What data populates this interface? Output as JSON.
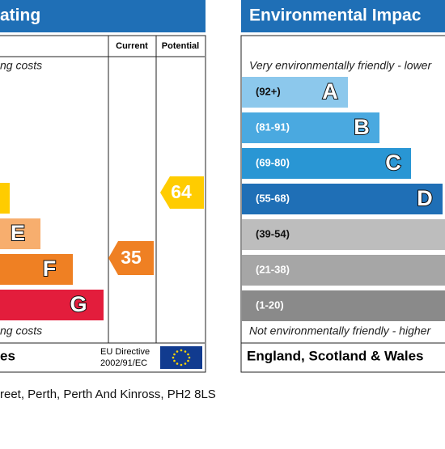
{
  "left_panel": {
    "title": "ating",
    "top_note": "ng costs",
    "bottom_note": "ng costs",
    "columns": [
      "Current",
      "Potential"
    ],
    "bands": [
      "E",
      "F",
      "G"
    ],
    "current": "35",
    "potential": "64",
    "footer": "es",
    "directive": [
      "EU Directive",
      "2002/91/EC"
    ]
  },
  "right_panel": {
    "title": "Environmental Impac",
    "top_note": "Very environmentally friendly - lower",
    "bottom_note": "Not environmentally friendly - higher",
    "bands": [
      {
        "range": "(92+)",
        "letter": "A"
      },
      {
        "range": "(81-91)",
        "letter": "B"
      },
      {
        "range": "(69-80)",
        "letter": "C"
      },
      {
        "range": "(55-68)",
        "letter": "D"
      },
      {
        "range": "(39-54)"
      },
      {
        "range": "(21-38)"
      },
      {
        "range": "(1-20)"
      }
    ],
    "footer": "England, Scotland & Wales"
  },
  "address": "reet, Perth, Perth And Kinross, PH2 8LS"
}
